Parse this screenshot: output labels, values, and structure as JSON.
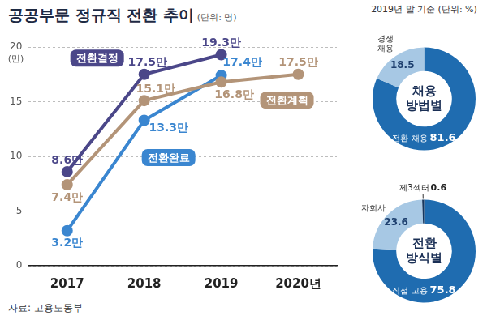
{
  "source": "자료: 고용노동부",
  "chart_data": [
    {
      "type": "line",
      "title": "공공부문 정규직 전환 추이",
      "subtitle": "(단위: 명)",
      "ylabel": "(만)",
      "categories": [
        "2017",
        "2018",
        "2019",
        "2020년"
      ],
      "series": [
        {
          "name": "전환결정",
          "color": "#4b4789",
          "values": [
            8.6,
            17.5,
            19.3,
            null
          ],
          "value_labels": [
            "8.6만",
            "17.5만",
            "19.3만",
            null
          ]
        },
        {
          "name": "전환계획",
          "color": "#b39478",
          "values": [
            7.4,
            15.1,
            16.8,
            17.5
          ],
          "value_labels": [
            "7.4만",
            "15.1만",
            "16.8만",
            "17.5만"
          ]
        },
        {
          "name": "전환완료",
          "color": "#3a86d0",
          "values": [
            3.2,
            13.3,
            17.4,
            null
          ],
          "value_labels": [
            "3.2만",
            "13.3만",
            "17.4만",
            null
          ]
        }
      ],
      "ylim": [
        0,
        20
      ],
      "yticks": [
        0,
        5,
        10,
        15,
        20
      ],
      "grid": true,
      "data_labels": true,
      "marker": "circle"
    },
    {
      "type": "doughnut",
      "title": "채용 방법별",
      "subtitle": "2019년 말 기준 (단위: %)",
      "categories": [
        "전환 채용",
        "경쟁 채용"
      ],
      "values": [
        81.6,
        18.5
      ],
      "colors": [
        "#1f6cb0",
        "#a7c8e4"
      ],
      "data_labels": true
    },
    {
      "type": "doughnut",
      "title": "전환 방식별",
      "categories": [
        "직접 고용",
        "자회사",
        "제3섹터"
      ],
      "values": [
        75.8,
        23.6,
        0.6
      ],
      "colors": [
        "#1f6cb0",
        "#a7c8e4",
        "#17375e"
      ],
      "data_labels": true
    }
  ]
}
